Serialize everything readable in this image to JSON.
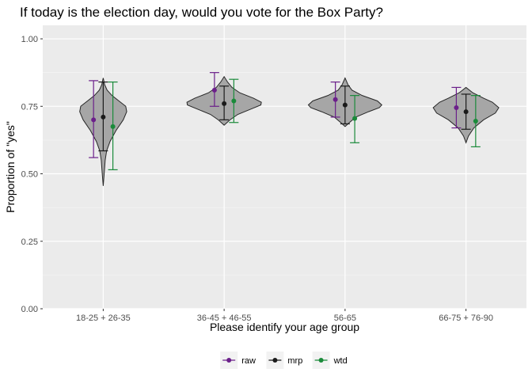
{
  "chart_data": {
    "type": "violin",
    "title": "If today is the election day, would you vote for the Box Party?",
    "xlabel": "Please identify your age group",
    "ylabel": "Proportion of \"yes\"",
    "ylim": [
      0,
      1.05
    ],
    "yticks": [
      0.0,
      0.25,
      0.5,
      0.75,
      1.0
    ],
    "ytick_labels": [
      "0.00",
      "0.25",
      "0.50",
      "0.75",
      "1.00"
    ],
    "categories": [
      "18-25 + 26-35",
      "36-45 + 46-55",
      "56-65",
      "66-75 + 76-90"
    ],
    "grid": true,
    "legend_position": "bottom",
    "violins": [
      {
        "category": "18-25 + 26-35",
        "min": 0.455,
        "max": 0.855,
        "shape": [
          [
            0.455,
            0.0
          ],
          [
            0.5,
            0.02
          ],
          [
            0.55,
            0.04
          ],
          [
            0.585,
            0.07
          ],
          [
            0.62,
            0.14
          ],
          [
            0.66,
            0.26
          ],
          [
            0.7,
            0.41
          ],
          [
            0.73,
            0.48
          ],
          [
            0.75,
            0.46
          ],
          [
            0.77,
            0.32
          ],
          [
            0.79,
            0.18
          ],
          [
            0.81,
            0.08
          ],
          [
            0.83,
            0.03
          ],
          [
            0.855,
            0.0
          ]
        ]
      },
      {
        "category": "36-45 + 46-55",
        "min": 0.68,
        "max": 0.86,
        "shape": [
          [
            0.68,
            0.0
          ],
          [
            0.69,
            0.06
          ],
          [
            0.7,
            0.12
          ],
          [
            0.72,
            0.28
          ],
          [
            0.74,
            0.55
          ],
          [
            0.755,
            0.75
          ],
          [
            0.765,
            0.76
          ],
          [
            0.78,
            0.6
          ],
          [
            0.8,
            0.32
          ],
          [
            0.82,
            0.16
          ],
          [
            0.84,
            0.07
          ],
          [
            0.86,
            0.0
          ]
        ]
      },
      {
        "category": "56-65",
        "min": 0.675,
        "max": 0.855,
        "shape": [
          [
            0.675,
            0.0
          ],
          [
            0.69,
            0.09
          ],
          [
            0.71,
            0.22
          ],
          [
            0.73,
            0.48
          ],
          [
            0.745,
            0.7
          ],
          [
            0.755,
            0.75
          ],
          [
            0.77,
            0.66
          ],
          [
            0.79,
            0.35
          ],
          [
            0.81,
            0.14
          ],
          [
            0.83,
            0.06
          ],
          [
            0.855,
            0.0
          ]
        ]
      },
      {
        "category": "66-75 + 76-90",
        "min": 0.615,
        "max": 0.82,
        "shape": [
          [
            0.615,
            0.0
          ],
          [
            0.64,
            0.05
          ],
          [
            0.67,
            0.16
          ],
          [
            0.7,
            0.36
          ],
          [
            0.725,
            0.6
          ],
          [
            0.745,
            0.67
          ],
          [
            0.765,
            0.54
          ],
          [
            0.78,
            0.36
          ],
          [
            0.8,
            0.14
          ],
          [
            0.82,
            0.0
          ]
        ]
      }
    ],
    "series": [
      {
        "name": "raw",
        "color": "#6b1f8a",
        "points": [
          {
            "category": "18-25 + 26-35",
            "y": 0.7,
            "low": 0.56,
            "high": 0.845
          },
          {
            "category": "36-45 + 46-55",
            "y": 0.81,
            "low": 0.75,
            "high": 0.875
          },
          {
            "category": "56-65",
            "y": 0.775,
            "low": 0.71,
            "high": 0.84
          },
          {
            "category": "66-75 + 76-90",
            "y": 0.745,
            "low": 0.67,
            "high": 0.82
          }
        ]
      },
      {
        "name": "mrp",
        "color": "#1a1a1a",
        "points": [
          {
            "category": "18-25 + 26-35",
            "y": 0.71,
            "low": 0.585,
            "high": 0.84
          },
          {
            "category": "36-45 + 46-55",
            "y": 0.76,
            "low": 0.7,
            "high": 0.825
          },
          {
            "category": "56-65",
            "y": 0.755,
            "low": 0.685,
            "high": 0.825
          },
          {
            "category": "66-75 + 76-90",
            "y": 0.73,
            "low": 0.665,
            "high": 0.795
          }
        ]
      },
      {
        "name": "wtd",
        "color": "#1a8a3a",
        "points": [
          {
            "category": "18-25 + 26-35",
            "y": 0.675,
            "low": 0.515,
            "high": 0.84
          },
          {
            "category": "36-45 + 46-55",
            "y": 0.77,
            "low": 0.69,
            "high": 0.85
          },
          {
            "category": "56-65",
            "y": 0.705,
            "low": 0.615,
            "high": 0.79
          },
          {
            "category": "66-75 + 76-90",
            "y": 0.695,
            "low": 0.6,
            "high": 0.79
          }
        ]
      }
    ]
  }
}
